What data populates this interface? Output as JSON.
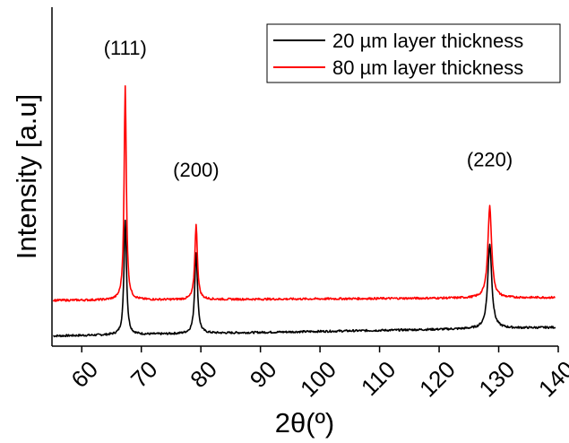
{
  "chart_data": {
    "type": "line",
    "xlabel": "2θ(º)",
    "ylabel": "Intensity [a.u]",
    "xlim": [
      55,
      140
    ],
    "xticks": [
      "60",
      "70",
      "80",
      "90",
      "100",
      "110",
      "120",
      "130",
      "140"
    ],
    "yticks": "none",
    "grid": false,
    "legend_position": "top-right",
    "series": [
      {
        "name": "20 µm layer thickness",
        "color": "#000000",
        "baseline": 0.03,
        "slope": 0.0003,
        "noise": 0.006,
        "peaks": [
          {
            "x": 67.3,
            "height": 0.34,
            "width": 0.25
          },
          {
            "x": 79.2,
            "height": 0.24,
            "width": 0.28
          },
          {
            "x": 128.5,
            "height": 0.25,
            "width": 0.4
          }
        ]
      },
      {
        "name": "80 µm layer thickness",
        "color": "#ff0000",
        "baseline": 0.135,
        "slope": 0.0001,
        "noise": 0.006,
        "peaks": [
          {
            "x": 67.3,
            "height": 0.63,
            "width": 0.22
          },
          {
            "x": 79.2,
            "height": 0.22,
            "width": 0.26
          },
          {
            "x": 128.5,
            "height": 0.27,
            "width": 0.38
          }
        ]
      }
    ],
    "annotations": [
      {
        "text": "(111)",
        "x": 67.3,
        "y": 0.86
      },
      {
        "text": "(200)",
        "x": 79.2,
        "y": 0.5
      },
      {
        "text": "(220)",
        "x": 128.5,
        "y": 0.53
      }
    ]
  }
}
